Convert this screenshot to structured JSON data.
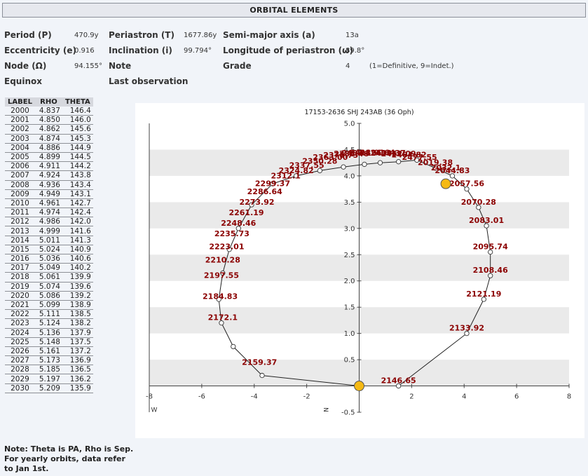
{
  "header": {
    "title": "ORBITAL ELEMENTS"
  },
  "elements": {
    "period_label": "Period (P)",
    "period_value": "470.9y",
    "periastron_label": "Periastron (T)",
    "periastron_value": "1677.86y",
    "semimajor_label": "Semi-major axis (a)",
    "semimajor_value": "13a",
    "ecc_label": "Eccentricity (e)",
    "ecc_value": "0.916",
    "incl_label": "Inclination (i)",
    "incl_value": "99.794°",
    "longper_label": "Longitude of periastron (ω)",
    "longper_value": "89.8°",
    "node_label": "Node (Ω)",
    "node_value": "94.155°",
    "note_label": "Note",
    "grade_label": "Grade",
    "grade_value": "4",
    "grade_hint": "(1=Definitive, 9=Indet.)",
    "equinox_label": "Equinox",
    "lastobs_label": "Last observation"
  },
  "ephemeris": {
    "headers": [
      "LABEL",
      "RHO",
      "THETA"
    ],
    "rows": [
      [
        "2000",
        "4.837",
        "146.4"
      ],
      [
        "2001",
        "4.850",
        "146.0"
      ],
      [
        "2002",
        "4.862",
        "145.6"
      ],
      [
        "2003",
        "4.874",
        "145.3"
      ],
      [
        "2004",
        "4.886",
        "144.9"
      ],
      [
        "2005",
        "4.899",
        "144.5"
      ],
      [
        "2006",
        "4.911",
        "144.2"
      ],
      [
        "2007",
        "4.924",
        "143.8"
      ],
      [
        "2008",
        "4.936",
        "143.4"
      ],
      [
        "2009",
        "4.949",
        "143.1"
      ],
      [
        "2010",
        "4.961",
        "142.7"
      ],
      [
        "2011",
        "4.974",
        "142.4"
      ],
      [
        "2012",
        "4.986",
        "142.0"
      ],
      [
        "2013",
        "4.999",
        "141.6"
      ],
      [
        "2014",
        "5.011",
        "141.3"
      ],
      [
        "2015",
        "5.024",
        "140.9"
      ],
      [
        "2016",
        "5.036",
        "140.6"
      ],
      [
        "2017",
        "5.049",
        "140.2"
      ],
      [
        "2018",
        "5.061",
        "139.9"
      ],
      [
        "2019",
        "5.074",
        "139.6"
      ],
      [
        "2020",
        "5.086",
        "139.2"
      ],
      [
        "2021",
        "5.099",
        "138.9"
      ],
      [
        "2022",
        "5.111",
        "138.5"
      ],
      [
        "2023",
        "5.124",
        "138.2"
      ],
      [
        "2024",
        "5.136",
        "137.9"
      ],
      [
        "2025",
        "5.148",
        "137.5"
      ],
      [
        "2026",
        "5.161",
        "137.2"
      ],
      [
        "2027",
        "5.173",
        "136.9"
      ],
      [
        "2028",
        "5.185",
        "136.5"
      ],
      [
        "2029",
        "5.197",
        "136.2"
      ],
      [
        "2030",
        "5.209",
        "135.9"
      ]
    ]
  },
  "note": "Note: Theta is PA, Rho is Sep. For yearly orbits, data refer to Jan 1st.",
  "chart_data": {
    "type": "scatter",
    "title": "17153-2636 SHJ 243AB (36 Oph)",
    "xlim": [
      -8,
      8
    ],
    "ylim": [
      -0.5,
      5
    ],
    "xticks": [
      -8,
      -6,
      -4,
      -2,
      2,
      4,
      6,
      8
    ],
    "yticks": [
      5.0,
      4.5,
      4.0,
      3.5,
      3.0,
      2.5,
      2.0,
      1.5,
      1.0,
      0.5,
      -0.5
    ],
    "xlabel": "W",
    "ylabel": "N",
    "grid": "alternating horizontal bands",
    "orbit": [
      [
        1.5,
        0.0
      ],
      [
        4.1,
        1.0
      ],
      [
        4.75,
        1.65
      ],
      [
        5.0,
        2.1
      ],
      [
        5.0,
        2.55
      ],
      [
        4.85,
        3.05
      ],
      [
        4.55,
        3.4
      ],
      [
        4.1,
        3.75
      ],
      [
        3.55,
        4.0
      ],
      [
        2.9,
        4.15
      ],
      [
        2.2,
        4.3
      ],
      [
        1.5,
        4.27
      ],
      [
        0.8,
        4.25
      ],
      [
        0.2,
        4.22
      ],
      [
        -0.6,
        4.17
      ],
      [
        -1.5,
        4.1
      ],
      [
        -2.4,
        4.0
      ],
      [
        -3.3,
        3.85
      ],
      [
        -4.1,
        3.45
      ],
      [
        -4.6,
        3.0
      ],
      [
        -4.95,
        2.6
      ],
      [
        -5.2,
        2.15
      ],
      [
        -5.35,
        1.65
      ],
      [
        -5.25,
        1.2
      ],
      [
        -4.8,
        0.75
      ],
      [
        -3.7,
        0.2
      ],
      [
        0.0,
        0.0
      ]
    ],
    "epoch_labels": [
      {
        "text": "2146.65",
        "x": 1.5,
        "y": 0.0
      },
      {
        "text": "2133.92",
        "x": 4.1,
        "y": 1.0
      },
      {
        "text": "2121.19",
        "x": 4.75,
        "y": 1.65
      },
      {
        "text": "2108.46",
        "x": 5.0,
        "y": 2.1
      },
      {
        "text": "2095.74",
        "x": 5.0,
        "y": 2.55
      },
      {
        "text": "2083.01",
        "x": 4.85,
        "y": 3.05
      },
      {
        "text": "2070.28",
        "x": 4.55,
        "y": 3.4
      },
      {
        "text": "2057.56",
        "x": 4.1,
        "y": 3.75
      },
      {
        "text": "2044.83",
        "x": 3.55,
        "y": 4.0
      },
      {
        "text": "2032.1",
        "x": 3.3,
        "y": 4.05
      },
      {
        "text": "2019.38",
        "x": 2.9,
        "y": 4.15
      },
      {
        "text": "2477.55",
        "x": 2.3,
        "y": 4.25
      },
      {
        "text": "2464.82",
        "x": 1.9,
        "y": 4.3
      },
      {
        "text": "2452.09",
        "x": 1.5,
        "y": 4.32
      },
      {
        "text": "2439.37",
        "x": 1.1,
        "y": 4.33
      },
      {
        "text": "2426.64",
        "x": 0.7,
        "y": 4.34
      },
      {
        "text": "2413.91",
        "x": 0.3,
        "y": 4.34
      },
      {
        "text": "2401.19",
        "x": 0.0,
        "y": 4.33
      },
      {
        "text": "2388.46",
        "x": -0.3,
        "y": 4.32
      },
      {
        "text": "2375.73",
        "x": -0.7,
        "y": 4.29
      },
      {
        "text": "2363.00",
        "x": -1.1,
        "y": 4.25
      },
      {
        "text": "2350.28",
        "x": -1.5,
        "y": 4.18
      },
      {
        "text": "2337.55",
        "x": -2.0,
        "y": 4.1
      },
      {
        "text": "2324.82",
        "x": -2.4,
        "y": 4.0
      },
      {
        "text": "2312.1",
        "x": -2.8,
        "y": 3.9
      },
      {
        "text": "2299.37",
        "x": -3.3,
        "y": 3.75
      },
      {
        "text": "2286.64",
        "x": -3.6,
        "y": 3.6
      },
      {
        "text": "2273.92",
        "x": -3.9,
        "y": 3.4
      },
      {
        "text": "2261.19",
        "x": -4.3,
        "y": 3.2
      },
      {
        "text": "2248.46",
        "x": -4.6,
        "y": 3.0
      },
      {
        "text": "2235.73",
        "x": -4.85,
        "y": 2.8
      },
      {
        "text": "2223.01",
        "x": -5.05,
        "y": 2.55
      },
      {
        "text": "2210.28",
        "x": -5.2,
        "y": 2.3
      },
      {
        "text": "2197.55",
        "x": -5.25,
        "y": 2.0
      },
      {
        "text": "2184.83",
        "x": -5.3,
        "y": 1.6
      },
      {
        "text": "2172.1",
        "x": -5.2,
        "y": 1.2
      },
      {
        "text": "2159.37",
        "x": -3.8,
        "y": 0.35
      }
    ],
    "primary": {
      "x": 0.0,
      "y": 0.0
    },
    "current": {
      "x": 3.3,
      "y": 3.85
    },
    "colors": {
      "orbit": "#222222",
      "labels": "#8b0000",
      "star": "#f5b914",
      "band": "#eaeaea"
    }
  }
}
